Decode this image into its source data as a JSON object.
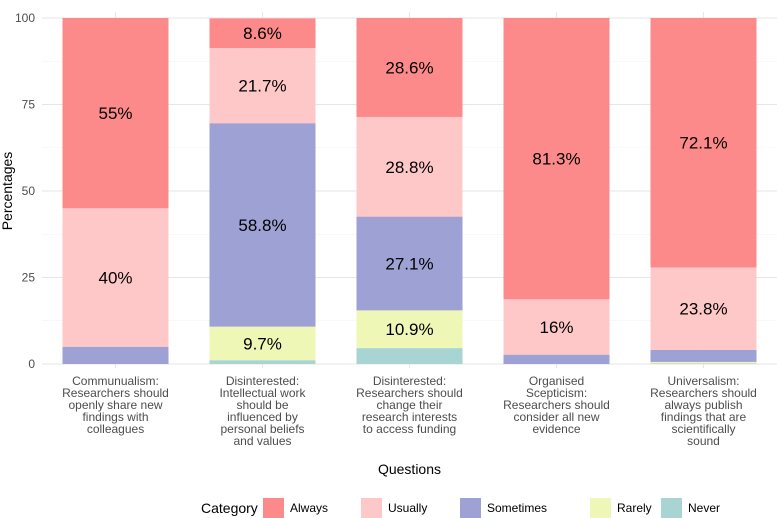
{
  "chart_data": {
    "type": "bar",
    "stacked": true,
    "xlabel": "Questions",
    "ylabel": "Percentages",
    "ylim": [
      0,
      100
    ],
    "yticks": [
      0,
      25,
      50,
      75,
      100
    ],
    "grid": true,
    "legend_position": "bottom",
    "legend_title": "Category",
    "categories": [
      [
        "Communualism:",
        "Researchers should",
        "openly share new",
        "findings with",
        "colleagues"
      ],
      [
        "Disinterested:",
        "Intellectual work",
        "should be",
        "influenced by",
        "personal beliefs",
        "and values"
      ],
      [
        "Disinterested:",
        "Researchers should",
        "change their",
        "research interests",
        "to access funding"
      ],
      [
        "Organised",
        "Scepticism:",
        "Researchers should",
        "consider all new",
        "evidence"
      ],
      [
        "Universalism:",
        "Researchers should",
        "always publish",
        "findings that are",
        "scientifically",
        "sound"
      ]
    ],
    "series": [
      {
        "name": "Never",
        "color": "#a8d5d3",
        "values": [
          0.0,
          1.1,
          4.6,
          0.0,
          0.2
        ]
      },
      {
        "name": "Rarely",
        "color": "#eef7b5",
        "values": [
          0.0,
          9.7,
          10.9,
          0.0,
          0.4
        ]
      },
      {
        "name": "Sometimes",
        "color": "#9ea1d4",
        "values": [
          5.0,
          58.8,
          27.1,
          2.7,
          3.5
        ]
      },
      {
        "name": "Usually",
        "color": "#ffc8c8",
        "values": [
          40.0,
          21.7,
          28.8,
          16.0,
          23.8
        ]
      },
      {
        "name": "Always",
        "color": "#fd8a8a",
        "values": [
          55.0,
          8.6,
          28.6,
          81.3,
          72.1
        ]
      }
    ],
    "data_labels": [
      {
        "bar": 0,
        "series": "Usually",
        "text": "40%"
      },
      {
        "bar": 0,
        "series": "Always",
        "text": "55%"
      },
      {
        "bar": 1,
        "series": "Rarely",
        "text": "9.7%"
      },
      {
        "bar": 1,
        "series": "Sometimes",
        "text": "58.8%"
      },
      {
        "bar": 1,
        "series": "Usually",
        "text": "21.7%"
      },
      {
        "bar": 1,
        "series": "Always",
        "text": "8.6%"
      },
      {
        "bar": 2,
        "series": "Rarely",
        "text": "10.9%"
      },
      {
        "bar": 2,
        "series": "Sometimes",
        "text": "27.1%"
      },
      {
        "bar": 2,
        "series": "Usually",
        "text": "28.8%"
      },
      {
        "bar": 2,
        "series": "Always",
        "text": "28.6%"
      },
      {
        "bar": 3,
        "series": "Usually",
        "text": "16%"
      },
      {
        "bar": 3,
        "series": "Always",
        "text": "81.3%"
      },
      {
        "bar": 4,
        "series": "Usually",
        "text": "23.8%"
      },
      {
        "bar": 4,
        "series": "Always",
        "text": "72.1%"
      }
    ],
    "legend_order": [
      "Always",
      "Usually",
      "Sometimes",
      "Rarely",
      "Never"
    ]
  }
}
